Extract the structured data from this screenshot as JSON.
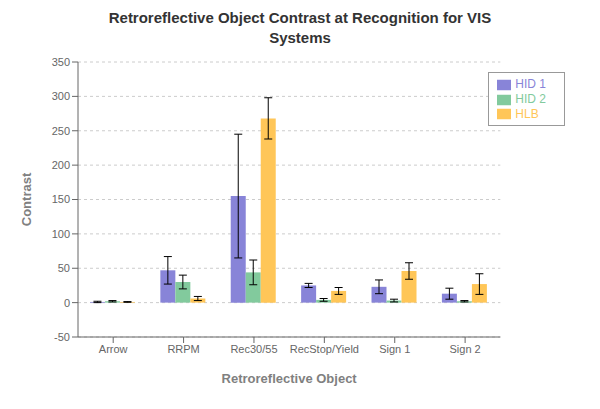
{
  "chart_data": {
    "type": "bar",
    "title": "Retroreflective Object Contrast at Recognition for VIS\nSystems",
    "xlabel": "Retroreflective Object",
    "ylabel": "Contrast",
    "categories": [
      "Arrow",
      "RRPM",
      "Rec30/55",
      "RecStop/Yield",
      "Sign 1",
      "Sign 2"
    ],
    "series": [
      {
        "name": "HID 1",
        "color": "#8884d8",
        "values": [
          1,
          47,
          155,
          25,
          23,
          13
        ],
        "errors": [
          1,
          20,
          90,
          3,
          10,
          8
        ]
      },
      {
        "name": "HID 2",
        "color": "#82ca9d",
        "values": [
          2,
          30,
          44,
          4,
          3,
          2
        ],
        "errors": [
          1,
          10,
          18,
          2,
          2,
          1
        ]
      },
      {
        "name": "HLB",
        "color": "#ffc658",
        "values": [
          1,
          6,
          268,
          17,
          46,
          27
        ],
        "errors": [
          0.5,
          3,
          30,
          5,
          12,
          15
        ]
      }
    ],
    "ylim": [
      -50,
      350
    ],
    "yticks": [
      -50,
      0,
      50,
      100,
      150,
      200,
      250,
      300,
      350
    ],
    "grid": true,
    "legend": "upper right"
  }
}
